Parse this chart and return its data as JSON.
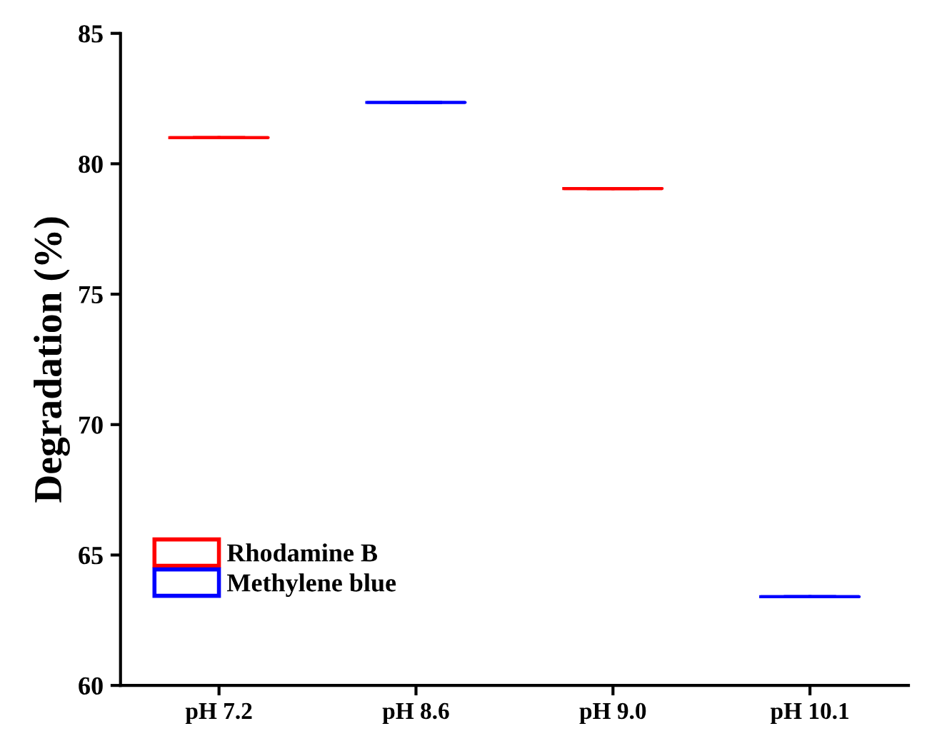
{
  "chart_data": {
    "type": "box",
    "ylabel": "Degradation (%)",
    "categories": [
      "pH 7.2",
      "pH 8.6",
      "pH 9.0",
      "pH 10.1"
    ],
    "series": [
      {
        "name": "Rhodamine B",
        "color": "#ff0000",
        "boxes": [
          {
            "low": 81.0,
            "q1": 81.0,
            "median": 81.0,
            "q3": 81.0,
            "high": 81.0
          },
          null,
          {
            "low": 79.05,
            "q1": 79.05,
            "median": 79.05,
            "q3": 79.05,
            "high": 79.05
          },
          null
        ]
      },
      {
        "name": "Methylene blue",
        "color": "#0000ff",
        "boxes": [
          null,
          {
            "low": 82.35,
            "q1": 82.35,
            "median": 82.35,
            "q3": 82.35,
            "high": 82.35
          },
          null,
          {
            "low": 63.4,
            "q1": 63.4,
            "median": 63.4,
            "q3": 63.4,
            "high": 63.4
          }
        ]
      }
    ],
    "ylim": [
      60,
      85
    ],
    "yticks": [
      60,
      65,
      70,
      75,
      80,
      85
    ],
    "grid": false,
    "legend": "bottom left"
  }
}
